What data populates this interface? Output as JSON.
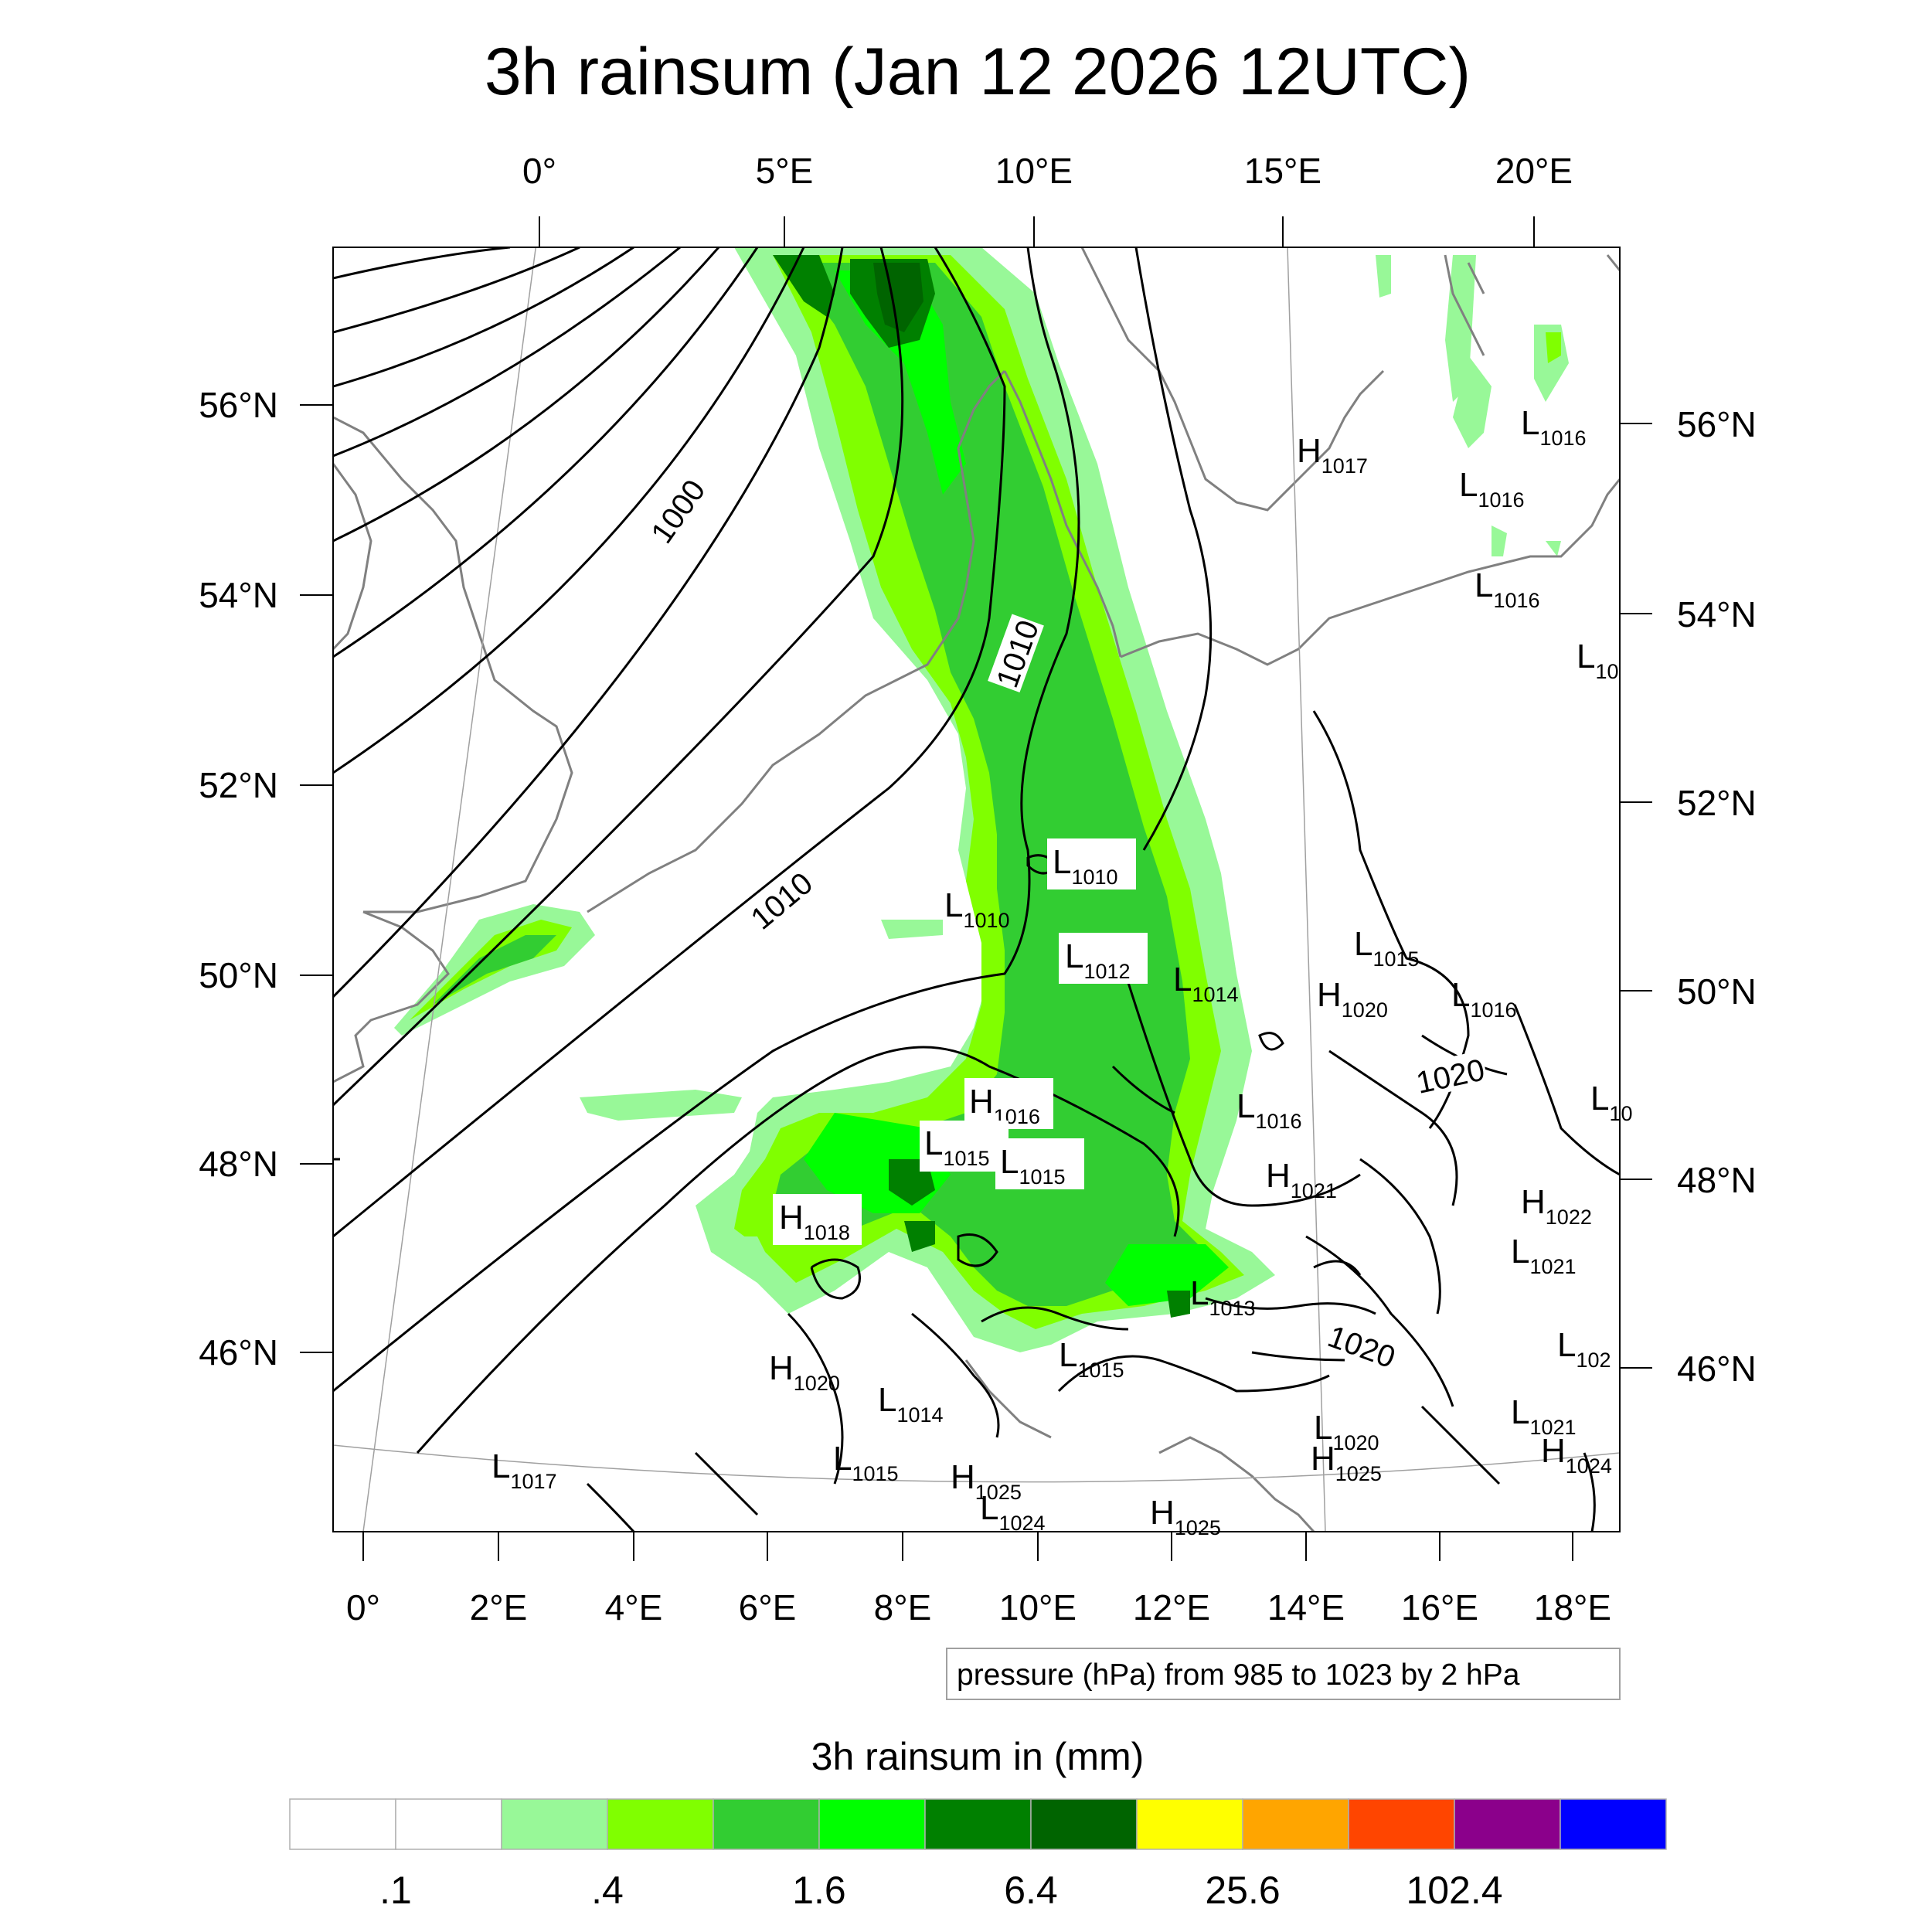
{
  "title": "3h rainsum (Jan 12 2026 12UTC)",
  "top_lon_labels": [
    "0°",
    "5°E",
    "10°E",
    "15°E",
    "20°E"
  ],
  "left_lat_labels": [
    "56°N",
    "54°N",
    "52°N",
    "50°N",
    "48°N",
    "46°N"
  ],
  "right_lat_labels": [
    "56°N",
    "54°N",
    "52°N",
    "50°N",
    "48°N",
    "46°N"
  ],
  "bottom_lon_labels": [
    "0°",
    "2°E",
    "4°E",
    "6°E",
    "8°E",
    "10°E",
    "12°E",
    "14°E",
    "16°E",
    "18°E"
  ],
  "pressure_info": "pressure (hPa) from 985 to 1023 by 2 hPa",
  "contour_labels": [
    "1000",
    "1010",
    "1010",
    "1020",
    "1020"
  ],
  "pressure_centers": [
    {
      "type": "H",
      "value": "1017"
    },
    {
      "type": "L",
      "value": "1016"
    },
    {
      "type": "L",
      "value": "1016"
    },
    {
      "type": "L",
      "value": "1016"
    },
    {
      "type": "L",
      "value": "10"
    },
    {
      "type": "L",
      "value": "1010"
    },
    {
      "type": "L",
      "value": "1010"
    },
    {
      "type": "L",
      "value": "1012"
    },
    {
      "type": "L",
      "value": "1014"
    },
    {
      "type": "L",
      "value": "1015"
    },
    {
      "type": "H",
      "value": "1020"
    },
    {
      "type": "L",
      "value": "1016"
    },
    {
      "type": "H",
      "value": "1016"
    },
    {
      "type": "L",
      "value": "1016"
    },
    {
      "type": "L",
      "value": "1015"
    },
    {
      "type": "L",
      "value": "1015"
    },
    {
      "type": "H",
      "value": "1021"
    },
    {
      "type": "H",
      "value": "1022"
    },
    {
      "type": "H",
      "value": "1018"
    },
    {
      "type": "L",
      "value": "1021"
    },
    {
      "type": "L",
      "value": "1013"
    },
    {
      "type": "H",
      "value": "1020"
    },
    {
      "type": "L",
      "value": "1015"
    },
    {
      "type": "L",
      "value": "102"
    },
    {
      "type": "L",
      "value": "1014"
    },
    {
      "type": "L",
      "value": "1021"
    },
    {
      "type": "L",
      "value": "1017"
    },
    {
      "type": "L",
      "value": "1020"
    },
    {
      "type": "H",
      "value": "1024"
    },
    {
      "type": "L",
      "value": "1015"
    },
    {
      "type": "H",
      "value": "1025"
    },
    {
      "type": "H",
      "value": "1025"
    },
    {
      "type": "L",
      "value": "1024"
    },
    {
      "type": "H",
      "value": "1025"
    },
    {
      "type": "L",
      "value": "10"
    }
  ],
  "colorbar": {
    "title": "3h rainsum in (mm)",
    "colors": [
      "#ffffff",
      "#ffffff",
      "#98f898",
      "#80ff00",
      "#32cd32",
      "#00ff00",
      "#008000",
      "#006400",
      "#ffff00",
      "#ffa500",
      "#ff4500",
      "#8b008b",
      "#0000ff"
    ],
    "labels": [
      ".1",
      ".4",
      "1.6",
      "6.4",
      "25.6",
      "102.4"
    ]
  }
}
